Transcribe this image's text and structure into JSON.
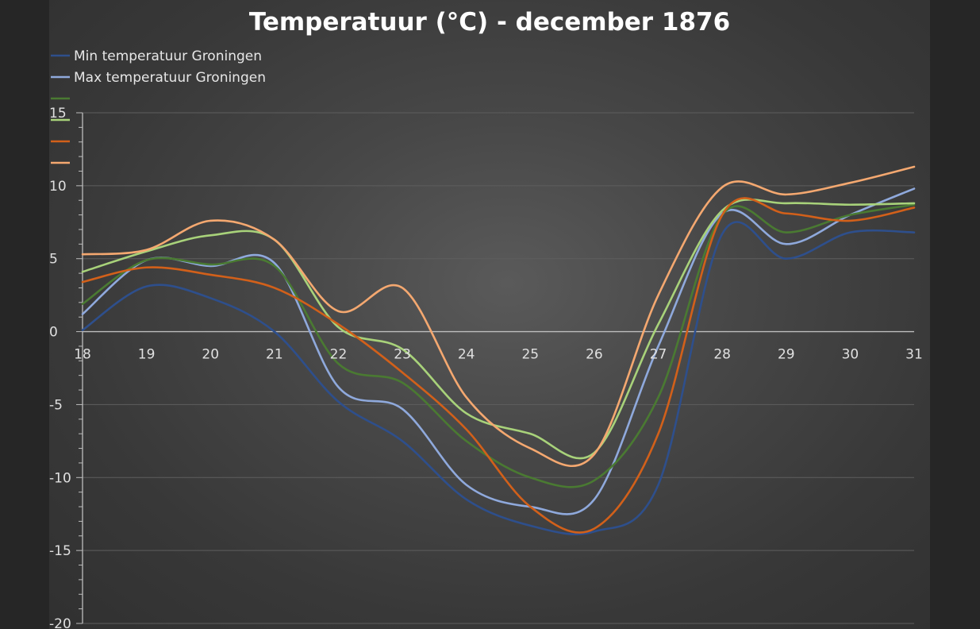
{
  "chart_data": {
    "type": "line",
    "title": "Temperatuur (°C) - december 1876",
    "xlabel": "",
    "ylabel": "",
    "x": [
      18,
      19,
      20,
      21,
      22,
      23,
      24,
      25,
      26,
      27,
      28,
      29,
      30,
      31
    ],
    "x_tick_labels": [
      "18",
      "19",
      "20",
      "21",
      "22",
      "23",
      "24",
      "25",
      "26",
      "27",
      "28",
      "29",
      "30",
      "31"
    ],
    "y_tick_labels": [
      "15",
      "10",
      "5",
      "0",
      "-5",
      "-10",
      "-15",
      "-20"
    ],
    "ylim": [
      -20,
      15
    ],
    "grid": true,
    "legend_position": "top-left",
    "series": [
      {
        "name": "Min temperatuur Groningen",
        "color": "#2e4f8c",
        "values": [
          0.1,
          3.1,
          2.3,
          0,
          -4.8,
          -7.5,
          -11.5,
          -13.3,
          -13.7,
          -10.5,
          6.7,
          5.0,
          6.8,
          6.8
        ]
      },
      {
        "name": "Max temperatuur Groningen",
        "color": "#8fa9dc",
        "values": [
          1.2,
          4.9,
          4.5,
          4.7,
          -3.8,
          -5.3,
          -10.5,
          -12.0,
          -11.5,
          -1.0,
          8.1,
          6.0,
          8.0,
          9.8
        ]
      },
      {
        "name": "",
        "color": "#4a7a32",
        "values": [
          1.9,
          4.9,
          4.6,
          4.5,
          -2.2,
          -3.5,
          -7.5,
          -10.0,
          -10.2,
          -4.5,
          8.0,
          6.8,
          8.0,
          8.7
        ]
      },
      {
        "name": "",
        "color": "#a8d27a",
        "values": [
          4.1,
          5.5,
          6.6,
          6.3,
          0.3,
          -1.2,
          -5.6,
          -7.0,
          -8.3,
          0.5,
          8.3,
          8.8,
          8.7,
          8.8
        ]
      },
      {
        "name": "",
        "color": "#d2601a",
        "values": [
          3.4,
          4.4,
          3.9,
          3.0,
          0.5,
          -2.8,
          -6.7,
          -12.0,
          -13.5,
          -7.0,
          8.0,
          8.1,
          7.6,
          8.5
        ]
      },
      {
        "name": "",
        "color": "#f4a870",
        "values": [
          5.3,
          5.6,
          7.6,
          6.3,
          1.4,
          3.0,
          -4.5,
          -8.0,
          -8.4,
          2.5,
          9.9,
          9.4,
          10.2,
          11.3
        ]
      }
    ]
  }
}
